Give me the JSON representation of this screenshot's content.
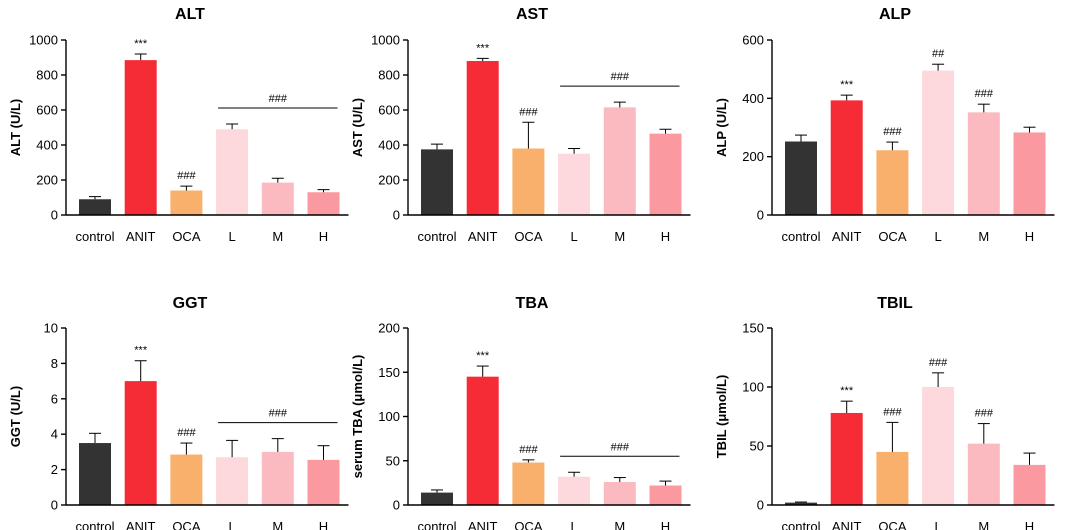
{
  "colors": {
    "control": "#333333",
    "ANIT": "#f52c36",
    "OCA": "#f9b06c",
    "L": "#fdd9dd",
    "M": "#fbbac0",
    "H": "#fa9aa0"
  },
  "chart_data": [
    {
      "type": "bar",
      "title": "ALT",
      "ylabel": "ALT   (U/L)",
      "ylim": [
        0,
        1000
      ],
      "yticks": [
        0,
        200,
        400,
        600,
        800,
        1000
      ],
      "categories": [
        "control",
        "ANIT",
        "OCA",
        "L",
        "M",
        "H"
      ],
      "values": [
        90,
        885,
        140,
        490,
        185,
        130
      ],
      "errors": [
        15,
        35,
        25,
        30,
        25,
        15
      ],
      "significance": [
        "",
        "***",
        "###",
        "",
        "",
        ""
      ],
      "bracket": {
        "from": "L",
        "to": "H",
        "label": "###"
      }
    },
    {
      "type": "bar",
      "title": "AST",
      "ylabel": "AST   (U/L)",
      "ylim": [
        0,
        1000
      ],
      "yticks": [
        0,
        200,
        400,
        600,
        800,
        1000
      ],
      "categories": [
        "control",
        "ANIT",
        "OCA",
        "L",
        "M",
        "H"
      ],
      "values": [
        375,
        880,
        380,
        350,
        615,
        465
      ],
      "errors": [
        30,
        15,
        150,
        30,
        30,
        25
      ],
      "significance": [
        "",
        "***",
        "###",
        "",
        "",
        ""
      ],
      "bracket": {
        "from": "L",
        "to": "H",
        "label": "###"
      }
    },
    {
      "type": "bar",
      "title": "ALP",
      "ylabel": "ALP (U/L)",
      "ylim": [
        0,
        600
      ],
      "yticks": [
        0,
        200,
        400,
        600
      ],
      "categories": [
        "control",
        "ANIT",
        "OCA",
        "L",
        "M",
        "H"
      ],
      "values": [
        252,
        393,
        222,
        495,
        352,
        283
      ],
      "errors": [
        22,
        18,
        28,
        22,
        28,
        18
      ],
      "significance": [
        "",
        "***",
        "###",
        "##",
        "###",
        ""
      ],
      "bracket": null
    },
    {
      "type": "bar",
      "title": "GGT",
      "ylabel": "GGT (U/L)",
      "ylim": [
        0,
        10
      ],
      "yticks": [
        0,
        2,
        4,
        6,
        8,
        10
      ],
      "categories": [
        "control",
        "ANIT",
        "OCA",
        "L",
        "M",
        "H"
      ],
      "values": [
        3.5,
        7.0,
        2.85,
        2.7,
        3.0,
        2.55
      ],
      "errors": [
        0.55,
        1.15,
        0.65,
        0.95,
        0.75,
        0.8
      ],
      "significance": [
        "",
        "***",
        "###",
        "",
        "",
        ""
      ],
      "bracket": {
        "from": "L",
        "to": "H",
        "label": "###"
      }
    },
    {
      "type": "bar",
      "title": "TBA",
      "ylabel": "serum TBA (μmol/L)",
      "ylim": [
        0,
        200
      ],
      "yticks": [
        0,
        50,
        100,
        150,
        200
      ],
      "categories": [
        "control",
        "ANIT",
        "OCA",
        "L",
        "M",
        "H"
      ],
      "values": [
        14,
        145,
        48,
        32,
        26,
        22
      ],
      "errors": [
        3,
        12,
        3,
        5,
        5,
        5
      ],
      "significance": [
        "",
        "***",
        "###",
        "",
        "",
        ""
      ],
      "bracket": {
        "from": "L",
        "to": "H",
        "label": "###"
      }
    },
    {
      "type": "bar",
      "title": "TBIL",
      "ylabel": "TBIL (μmol/L)",
      "ylim": [
        0,
        150
      ],
      "yticks": [
        0,
        50,
        100,
        150
      ],
      "categories": [
        "control",
        "ANIT",
        "OCA",
        "L",
        "M",
        "H"
      ],
      "values": [
        2,
        78,
        45,
        100,
        52,
        34
      ],
      "errors": [
        0.5,
        10,
        25,
        12,
        17,
        10
      ],
      "significance": [
        "",
        "***",
        "###",
        "###",
        "###",
        ""
      ],
      "bracket": null
    }
  ]
}
